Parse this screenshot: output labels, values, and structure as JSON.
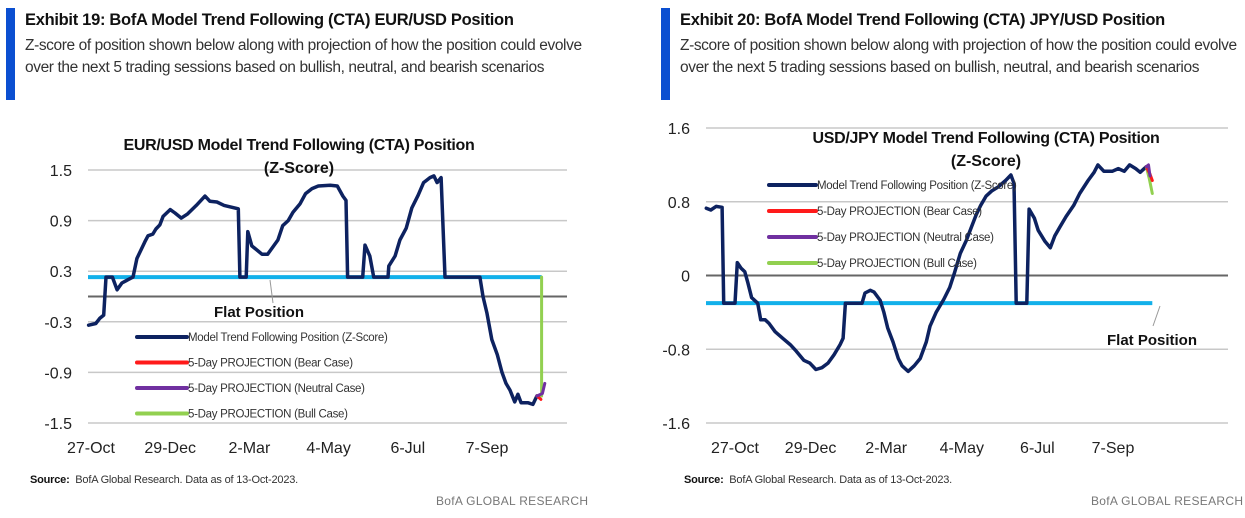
{
  "exhibits": [
    {
      "title": "Exhibit 19: BofA Model Trend Following (CTA) EUR/USD Position",
      "subtitle": "Z-score of position shown below along with projection of how the position could evolve over the next 5 trading sessions based on bullish, neutral, and bearish scenarios",
      "source_label": "Source:",
      "source_text": "BofA Global Research.  Data as of 13-Oct-2023.",
      "brand": "BofA GLOBAL RESEARCH"
    },
    {
      "title": "Exhibit 20: BofA Model Trend Following (CTA) JPY/USD Position",
      "subtitle": "Z-score of position shown below along with projection of how the position could evolve over the next 5 trading sessions based on bullish, neutral, and bearish scenarios",
      "source_label": "Source:",
      "source_text": "BofA Global Research.  Data as of 13-Oct-2023.",
      "brand": "BofA GLOBAL RESEARCH"
    }
  ],
  "colors": {
    "accent_bar": "#0b4fd1",
    "position": "#0d2260",
    "bear": "#ff1a1a",
    "neutral": "#7030a0",
    "bull": "#92d050",
    "flat": "#12b0ea",
    "grid": "#c8c8c8",
    "zero_axis": "#666666"
  },
  "chart_data": [
    {
      "type": "line",
      "title": "EUR/USD Model Trend Following (CTA) Position",
      "title_line2": "(Z-Score)",
      "xlabel": "",
      "ylabel": "",
      "x_unit": "tick index (0 = 27-Oct, 1 = 29-Dec, ... 5 = 7-Sep)",
      "xticks": [
        "27-Oct",
        "29-Dec",
        "2-Mar",
        "4-May",
        "6-Jul",
        "7-Sep"
      ],
      "yticks": [
        "1.5",
        "0.9",
        "0.3",
        "-0.3",
        "-0.9",
        "-1.5"
      ],
      "ylim": [
        -1.5,
        1.5
      ],
      "grid": true,
      "legend_position": "bottom-left (inside plot)",
      "legend": [
        "Model Trend Following Position (Z-Score)",
        "5-Day PROJECTION (Bear Case)",
        "5-Day PROJECTION (Neutral Case)",
        "5-Day PROJECTION (Bull Case)"
      ],
      "flat_position": {
        "label": "Flat Position",
        "value": 0.23
      },
      "series": [
        {
          "name": "Model Trend Following Position (Z-Score)",
          "x": [
            -0.03,
            0.06,
            0.11,
            0.16,
            0.19,
            0.27,
            0.33,
            0.39,
            0.47,
            0.53,
            0.58,
            0.63,
            0.68,
            0.72,
            0.78,
            0.82,
            0.87,
            0.91,
            1.0,
            1.06,
            1.14,
            1.22,
            1.33,
            1.44,
            1.5,
            1.59,
            1.68,
            1.86,
            1.88,
            1.96,
            1.98,
            2.03,
            2.11,
            2.16,
            2.23,
            2.29,
            2.36,
            2.42,
            2.49,
            2.55,
            2.64,
            2.71,
            2.79,
            2.87,
            3.02,
            3.11,
            3.18,
            3.22,
            3.24,
            3.43,
            3.46,
            3.52,
            3.57,
            3.75,
            3.76,
            3.84,
            3.9,
            3.98,
            4.05,
            4.13,
            4.2,
            4.28,
            4.33,
            4.37,
            4.42,
            4.47,
            4.91,
            4.95,
            5.0,
            5.06,
            5.13,
            5.19,
            5.24,
            5.29,
            5.35,
            5.39,
            5.43,
            5.52,
            5.58,
            5.63
          ],
          "y": [
            -0.34,
            -0.32,
            -0.26,
            -0.22,
            0.23,
            0.23,
            0.08,
            0.16,
            0.2,
            0.23,
            0.45,
            0.55,
            0.65,
            0.72,
            0.74,
            0.8,
            0.85,
            0.95,
            1.03,
            0.99,
            0.93,
            0.98,
            1.08,
            1.19,
            1.13,
            1.12,
            1.08,
            1.04,
            0.23,
            0.23,
            0.77,
            0.6,
            0.54,
            0.5,
            0.5,
            0.58,
            0.67,
            0.84,
            0.9,
            1.0,
            1.1,
            1.22,
            1.28,
            1.31,
            1.32,
            1.31,
            1.19,
            1.14,
            0.23,
            0.23,
            0.61,
            0.48,
            0.23,
            0.23,
            0.36,
            0.48,
            0.67,
            0.81,
            1.05,
            1.2,
            1.35,
            1.41,
            1.43,
            1.35,
            1.41,
            0.23,
            0.23,
            0.0,
            -0.2,
            -0.51,
            -0.69,
            -0.9,
            -1.03,
            -1.11,
            -1.25,
            -1.16,
            -1.26,
            -1.26,
            -1.28,
            -1.18
          ]
        },
        {
          "name": "5-Day PROJECTION (Bear Case)",
          "x": [
            5.63,
            5.68
          ],
          "y": [
            -1.18,
            -1.22
          ]
        },
        {
          "name": "5-Day PROJECTION (Neutral Case)",
          "x": [
            5.63,
            5.7,
            5.73
          ],
          "y": [
            -1.18,
            -1.15,
            -1.03
          ]
        },
        {
          "name": "5-Day PROJECTION (Bull Case)",
          "x": [
            5.63,
            5.69,
            5.69
          ],
          "y": [
            -1.18,
            -1.18,
            0.23
          ]
        }
      ]
    },
    {
      "type": "line",
      "title": "USD/JPY Model Trend Following (CTA) Position",
      "title_line2": "(Z-Score)",
      "xlabel": "",
      "ylabel": "",
      "x_unit": "tick index (0 = 27-Oct, 1 = 29-Dec, ... 5 = 7-Sep)",
      "xticks": [
        "27-Oct",
        "29-Dec",
        "2-Mar",
        "4-May",
        "6-Jul",
        "7-Sep"
      ],
      "yticks": [
        "1.6",
        "0.8",
        "0",
        "-0.8",
        "-1.6"
      ],
      "ylim": [
        -1.6,
        1.6
      ],
      "grid": true,
      "legend_position": "top-left (inside plot)",
      "legend": [
        "Model Trend Following Position (Z-Score)",
        "5-Day PROJECTION (Bear Case)",
        "5-Day PROJECTION (Neutral Case)",
        "5-Day PROJECTION (Bull Case)"
      ],
      "flat_position": {
        "label": "Flat Position",
        "value": -0.3
      },
      "series": [
        {
          "name": "Model Trend Following Position (Z-Score)",
          "x": [
            -0.38,
            -0.32,
            -0.25,
            -0.17,
            -0.15,
            0.0,
            0.03,
            0.08,
            0.13,
            0.17,
            0.22,
            0.3,
            0.34,
            0.4,
            0.45,
            0.53,
            0.63,
            0.73,
            0.81,
            0.91,
            0.99,
            1.07,
            1.15,
            1.23,
            1.31,
            1.39,
            1.43,
            1.46,
            1.68,
            1.72,
            1.79,
            1.84,
            1.92,
            1.97,
            2.02,
            2.09,
            2.16,
            2.21,
            2.29,
            2.37,
            2.45,
            2.53,
            2.58,
            2.66,
            2.76,
            2.84,
            2.9,
            2.98,
            3.06,
            3.13,
            3.19,
            3.25,
            3.32,
            3.4,
            3.48,
            3.58,
            3.65,
            3.69,
            3.72,
            3.86,
            3.89,
            3.96,
            4.01,
            4.1,
            4.17,
            4.23,
            4.3,
            4.38,
            4.48,
            4.56,
            4.67,
            4.75,
            4.8,
            4.88,
            4.99,
            5.07,
            5.15,
            5.22,
            5.3,
            5.36,
            5.44
          ],
          "y": [
            0.73,
            0.71,
            0.75,
            0.74,
            -0.3,
            -0.3,
            0.14,
            0.08,
            0.04,
            -0.08,
            -0.24,
            -0.3,
            -0.48,
            -0.48,
            -0.52,
            -0.61,
            -0.68,
            -0.75,
            -0.82,
            -0.92,
            -0.95,
            -1.02,
            -1.0,
            -0.95,
            -0.86,
            -0.75,
            -0.68,
            -0.3,
            -0.3,
            -0.19,
            -0.16,
            -0.18,
            -0.27,
            -0.4,
            -0.57,
            -0.72,
            -0.9,
            -0.98,
            -1.04,
            -0.98,
            -0.9,
            -0.72,
            -0.55,
            -0.4,
            -0.26,
            -0.13,
            0.02,
            0.24,
            0.38,
            0.53,
            0.66,
            0.76,
            0.86,
            0.92,
            0.96,
            1.03,
            1.09,
            1.0,
            -0.3,
            -0.3,
            0.72,
            0.62,
            0.49,
            0.37,
            0.3,
            0.43,
            0.53,
            0.64,
            0.76,
            0.89,
            1.03,
            1.12,
            1.2,
            1.13,
            1.13,
            1.16,
            1.13,
            1.2,
            1.16,
            1.12,
            1.18
          ]
        },
        {
          "name": "5-Day PROJECTION (Bear Case)",
          "x": [
            5.44,
            5.49,
            5.52
          ],
          "y": [
            1.18,
            1.1,
            1.03
          ]
        },
        {
          "name": "5-Day PROJECTION (Neutral Case)",
          "x": [
            5.44,
            5.47,
            5.49
          ],
          "y": [
            1.18,
            1.2,
            1.08
          ]
        },
        {
          "name": "5-Day PROJECTION (Bull Case)",
          "x": [
            5.44,
            5.48,
            5.52
          ],
          "y": [
            1.18,
            1.05,
            0.89
          ]
        }
      ]
    }
  ]
}
